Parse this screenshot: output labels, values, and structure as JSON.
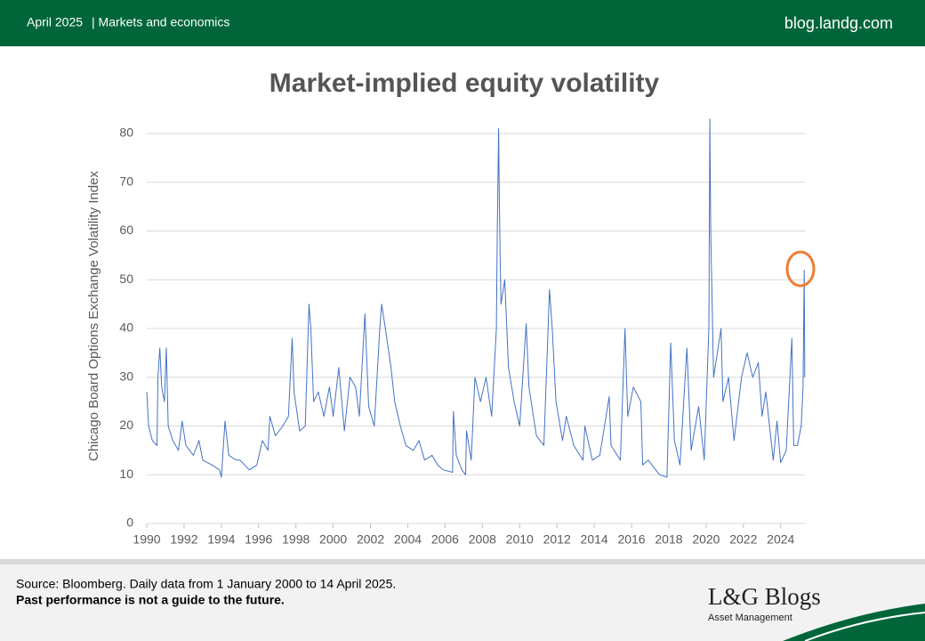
{
  "header": {
    "date": "April 2025",
    "section": "| Markets and economics",
    "site": "blog.landg.com"
  },
  "chart_data": {
    "type": "line",
    "title": "Market-implied equity volatility",
    "y_label": "Chicago Board Options Exchange Volatility Index",
    "color": "#4472c4",
    "grid": true,
    "xlim": [
      1990,
      2025.3
    ],
    "xticks": [
      1990,
      1992,
      1994,
      1996,
      1998,
      2000,
      2002,
      2004,
      2006,
      2008,
      2010,
      2012,
      2014,
      2016,
      2018,
      2020,
      2022,
      2024
    ],
    "ylim": [
      0,
      80
    ],
    "yticks": [
      0,
      10,
      20,
      30,
      40,
      50,
      60,
      70,
      80
    ],
    "x": [
      1990.0,
      1990.1,
      1990.3,
      1990.55,
      1990.6,
      1990.7,
      1990.8,
      1990.95,
      1991.05,
      1991.15,
      1991.4,
      1991.7,
      1991.9,
      1992.1,
      1992.5,
      1992.8,
      1993.0,
      1993.5,
      1993.9,
      1994.0,
      1994.2,
      1994.4,
      1994.8,
      1995.0,
      1995.5,
      1995.9,
      1996.2,
      1996.5,
      1996.6,
      1996.9,
      1997.3,
      1997.6,
      1997.8,
      1997.9,
      1998.2,
      1998.5,
      1998.7,
      1998.8,
      1998.95,
      1999.2,
      1999.5,
      1999.8,
      2000.0,
      2000.3,
      2000.6,
      2000.9,
      2001.2,
      2001.4,
      2001.7,
      2001.9,
      2002.2,
      2002.5,
      2002.6,
      2002.8,
      2003.1,
      2003.3,
      2003.6,
      2003.9,
      2004.3,
      2004.6,
      2004.9,
      2005.3,
      2005.6,
      2005.9,
      2006.4,
      2006.45,
      2006.6,
      2006.9,
      2007.1,
      2007.15,
      2007.4,
      2007.6,
      2007.9,
      2008.2,
      2008.5,
      2008.75,
      2008.8,
      2008.87,
      2008.9,
      2008.95,
      2009.0,
      2009.2,
      2009.4,
      2009.7,
      2010.0,
      2010.35,
      2010.5,
      2010.9,
      2011.3,
      2011.6,
      2011.75,
      2011.95,
      2012.3,
      2012.5,
      2012.9,
      2013.4,
      2013.5,
      2013.9,
      2014.3,
      2014.8,
      2014.9,
      2015.4,
      2015.65,
      2015.8,
      2016.1,
      2016.5,
      2016.6,
      2016.9,
      2017.5,
      2017.9,
      2018.1,
      2018.3,
      2018.6,
      2018.97,
      2019.2,
      2019.6,
      2019.9,
      2020.15,
      2020.2,
      2020.25,
      2020.4,
      2020.8,
      2020.9,
      2021.2,
      2021.5,
      2021.9,
      2022.2,
      2022.5,
      2022.8,
      2023.0,
      2023.2,
      2023.6,
      2023.8,
      2024.0,
      2024.3,
      2024.6,
      2024.7,
      2024.9,
      2025.1,
      2025.2,
      2025.26,
      2025.28,
      2025.29
    ],
    "values": [
      27,
      20,
      17,
      16,
      30,
      36,
      28,
      25,
      36,
      20,
      17,
      15,
      21,
      16,
      14,
      17,
      13,
      12,
      11,
      9.5,
      21,
      14,
      13,
      13,
      11,
      12,
      17,
      15,
      22,
      18,
      20,
      22,
      38,
      27,
      19,
      20,
      45,
      40,
      25,
      27,
      22,
      28,
      22,
      32,
      19,
      30,
      28,
      22,
      43,
      24,
      20,
      40,
      45,
      40,
      32,
      25,
      20,
      16,
      15,
      17,
      13,
      14,
      12,
      11,
      10.5,
      23,
      14,
      11,
      10,
      19,
      13,
      30,
      25,
      30,
      22,
      40,
      60,
      81,
      70,
      55,
      45,
      50,
      32,
      25,
      20,
      41,
      28,
      18,
      16,
      48,
      40,
      25,
      17,
      22,
      16,
      13,
      20,
      13,
      14,
      26,
      16,
      13,
      40,
      22,
      28,
      25,
      12,
      13,
      10,
      9.5,
      37,
      17,
      12,
      36,
      15,
      24,
      13,
      40,
      83,
      60,
      30,
      40,
      25,
      30,
      17,
      30,
      35,
      30,
      33,
      22,
      27,
      13,
      21,
      12.5,
      15,
      38,
      16,
      16,
      20,
      28,
      52,
      40,
      30
    ]
  },
  "footer": {
    "source": "Source: Bloomberg. Daily data from 1 January 2000 to 14 April 2025.",
    "disclaimer": "Past performance is not a guide to the future.",
    "logo": "L&G Blogs",
    "logo_sub": "Asset Management"
  }
}
